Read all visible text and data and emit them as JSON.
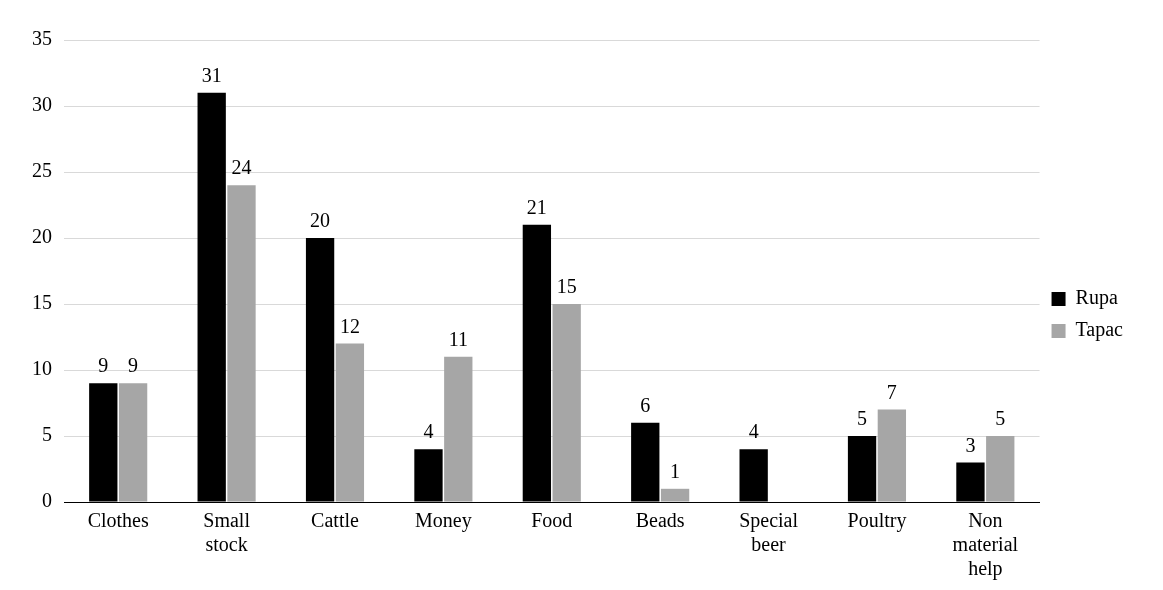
{
  "chart_data": {
    "type": "bar",
    "categories": [
      "Clothes",
      "Small stock",
      "Cattle",
      "Money",
      "Food",
      "Beads",
      "Special beer",
      "Poultry",
      "Non material help"
    ],
    "series": [
      {
        "name": "Rupa",
        "color": "#000000",
        "values": [
          9,
          31,
          20,
          4,
          21,
          6,
          4,
          5,
          3
        ]
      },
      {
        "name": "Tapac",
        "color": "#a6a6a6",
        "values": [
          9,
          24,
          12,
          11,
          15,
          1,
          null,
          7,
          5
        ]
      }
    ],
    "ylim": [
      0,
      35
    ],
    "yticks": [
      0,
      5,
      10,
      15,
      20,
      25,
      30,
      35
    ],
    "grid": "y",
    "legend": "right",
    "data_labels": true
  }
}
